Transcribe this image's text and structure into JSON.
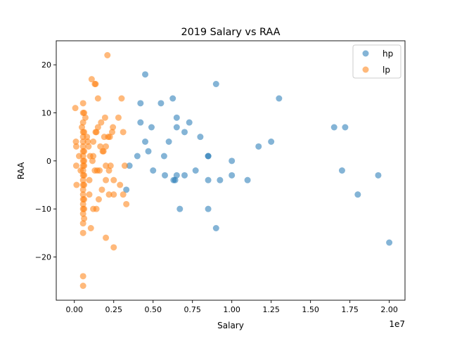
{
  "chart_data": {
    "type": "scatter",
    "title": "2019 Salary vs RAA",
    "xlabel": "Salary",
    "ylabel": "RAA",
    "x_offset_label": "1e7",
    "xlim": [
      -1150000,
      21000000
    ],
    "ylim": [
      -29,
      25
    ],
    "xticks": [
      0,
      2500000,
      5000000,
      7500000,
      10000000,
      12500000,
      15000000,
      17500000,
      20000000
    ],
    "xtick_labels": [
      "0.00",
      "0.25",
      "0.50",
      "0.75",
      "1.00",
      "1.25",
      "1.50",
      "1.75",
      "2.00"
    ],
    "yticks": [
      -20,
      -10,
      0,
      10,
      20
    ],
    "ytick_labels": [
      "−20",
      "−10",
      "0",
      "10",
      "20"
    ],
    "grid": false,
    "legend_position": "top-right",
    "series": [
      {
        "name": "hp",
        "color": "#1f77b4",
        "points": [
          [
            3300000,
            -6
          ],
          [
            3500000,
            -1
          ],
          [
            4000000,
            1
          ],
          [
            4200000,
            8
          ],
          [
            4200000,
            12
          ],
          [
            4500000,
            18
          ],
          [
            4500000,
            4
          ],
          [
            4700000,
            2
          ],
          [
            4900000,
            7
          ],
          [
            5000000,
            -2
          ],
          [
            5500000,
            12
          ],
          [
            5700000,
            1
          ],
          [
            5750000,
            -3
          ],
          [
            6000000,
            4
          ],
          [
            6250000,
            13
          ],
          [
            6300000,
            -4
          ],
          [
            6400000,
            -4
          ],
          [
            6500000,
            9
          ],
          [
            6500000,
            7
          ],
          [
            6500000,
            -3
          ],
          [
            6700000,
            -10
          ],
          [
            7000000,
            6
          ],
          [
            7000000,
            -3
          ],
          [
            7300000,
            8
          ],
          [
            7700000,
            -2
          ],
          [
            8000000,
            5
          ],
          [
            8500000,
            1
          ],
          [
            8500000,
            1
          ],
          [
            8500000,
            -4
          ],
          [
            8500000,
            -10
          ],
          [
            9000000,
            16
          ],
          [
            9000000,
            -14
          ],
          [
            9250000,
            -4
          ],
          [
            10000000,
            0
          ],
          [
            10000000,
            -3
          ],
          [
            11000000,
            -4
          ],
          [
            11700000,
            3
          ],
          [
            12500000,
            4
          ],
          [
            13000000,
            13
          ],
          [
            16500000,
            7
          ],
          [
            17000000,
            -2
          ],
          [
            17200000,
            7
          ],
          [
            18000000,
            -7
          ],
          [
            19300000,
            -3
          ],
          [
            20000000,
            -17
          ]
        ]
      },
      {
        "name": "lp",
        "color": "#ff7f0e",
        "points": [
          [
            60000,
            11
          ],
          [
            100000,
            4
          ],
          [
            120000,
            3
          ],
          [
            120000,
            -1
          ],
          [
            140000,
            -5
          ],
          [
            300000,
            1
          ],
          [
            400000,
            -2
          ],
          [
            480000,
            7
          ],
          [
            555000,
            12
          ],
          [
            555000,
            10
          ],
          [
            555000,
            8
          ],
          [
            555000,
            6
          ],
          [
            555000,
            5
          ],
          [
            555000,
            4
          ],
          [
            555000,
            3
          ],
          [
            555000,
            2
          ],
          [
            555000,
            1
          ],
          [
            555000,
            0
          ],
          [
            555000,
            -1
          ],
          [
            555000,
            -2
          ],
          [
            555000,
            -3
          ],
          [
            555000,
            -4
          ],
          [
            555000,
            -5
          ],
          [
            555000,
            -6
          ],
          [
            555000,
            -7
          ],
          [
            555000,
            -8
          ],
          [
            555000,
            -9
          ],
          [
            555000,
            -10
          ],
          [
            555000,
            -11
          ],
          [
            555000,
            -13
          ],
          [
            555000,
            -15
          ],
          [
            555000,
            -24
          ],
          [
            555000,
            -26
          ],
          [
            620000,
            10
          ],
          [
            620000,
            6
          ],
          [
            620000,
            2
          ],
          [
            620000,
            0
          ],
          [
            620000,
            -1
          ],
          [
            620000,
            -3
          ],
          [
            620000,
            -5
          ],
          [
            620000,
            -8
          ],
          [
            620000,
            -10
          ],
          [
            620000,
            -12
          ],
          [
            700000,
            9
          ],
          [
            800000,
            5
          ],
          [
            850000,
            4
          ],
          [
            900000,
            3
          ],
          [
            950000,
            -4
          ],
          [
            950000,
            -7
          ],
          [
            1000000,
            1
          ],
          [
            1050000,
            -14
          ],
          [
            1100000,
            17
          ],
          [
            1150000,
            0
          ],
          [
            1200000,
            1
          ],
          [
            1200000,
            -10
          ],
          [
            1200000,
            4
          ],
          [
            1300000,
            16
          ],
          [
            1300000,
            -2
          ],
          [
            1350000,
            16
          ],
          [
            1350000,
            6
          ],
          [
            1400000,
            6
          ],
          [
            1400000,
            -10
          ],
          [
            1450000,
            -2
          ],
          [
            1500000,
            13
          ],
          [
            1500000,
            7
          ],
          [
            1550000,
            -8
          ],
          [
            1600000,
            -2
          ],
          [
            1650000,
            3
          ],
          [
            1700000,
            8
          ],
          [
            1750000,
            -6
          ],
          [
            1800000,
            2
          ],
          [
            1850000,
            2
          ],
          [
            1900000,
            5
          ],
          [
            1950000,
            9
          ],
          [
            2000000,
            3
          ],
          [
            2000000,
            -1
          ],
          [
            2000000,
            -4
          ],
          [
            2000000,
            -16
          ],
          [
            2100000,
            22
          ],
          [
            2150000,
            5
          ],
          [
            2200000,
            -2
          ],
          [
            2200000,
            -7
          ],
          [
            2250000,
            5
          ],
          [
            2300000,
            -1
          ],
          [
            2400000,
            6
          ],
          [
            2450000,
            7
          ],
          [
            2500000,
            -4
          ],
          [
            2500000,
            -7
          ],
          [
            2500000,
            -18
          ],
          [
            2800000,
            9
          ],
          [
            2900000,
            -5
          ],
          [
            3000000,
            13
          ],
          [
            3100000,
            -7
          ],
          [
            3100000,
            6
          ],
          [
            3200000,
            -1
          ],
          [
            3300000,
            -9
          ]
        ]
      }
    ]
  }
}
